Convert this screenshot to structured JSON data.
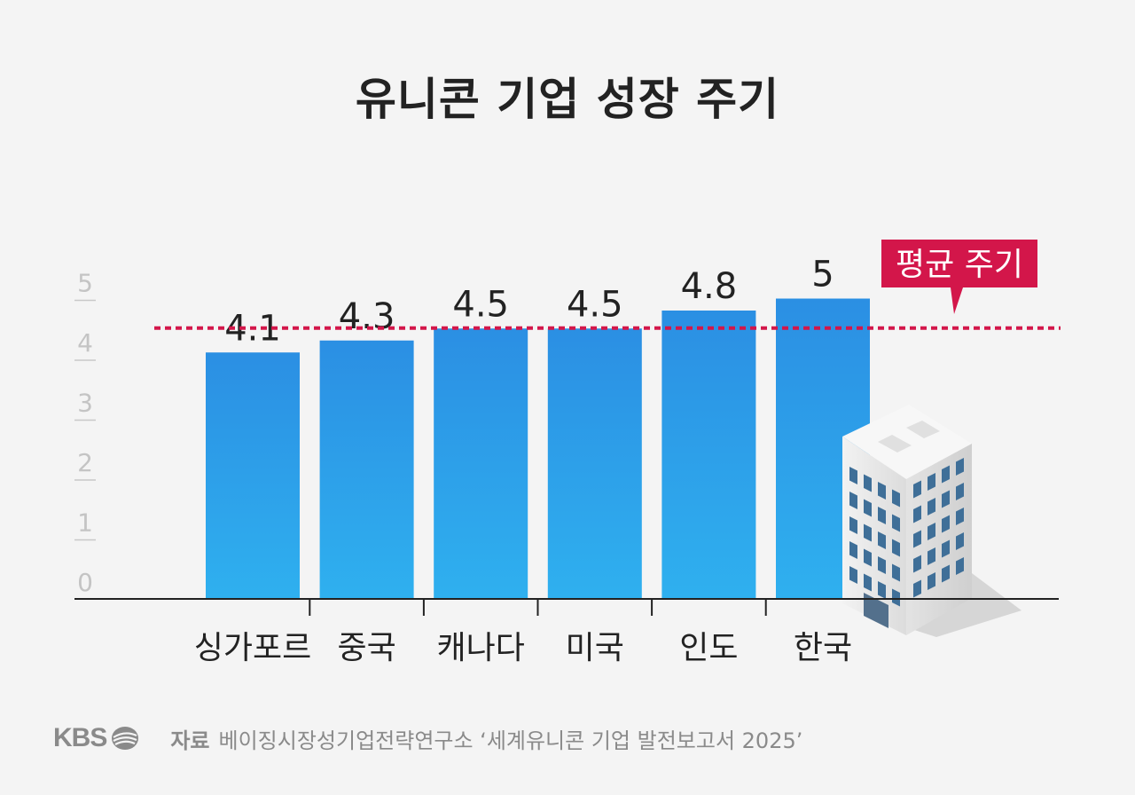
{
  "title": "유니콘 기업 성장 주기",
  "legend_label": "평균 주기",
  "source": {
    "logo": "KBS",
    "label": "자료",
    "text": "베이징시장성기업전략연구소 ‘세계유니콘 기업 발전보고서 2025’"
  },
  "colors": {
    "bar_top": "#2b8fe3",
    "bar_bottom": "#2fb0ef",
    "average_line": "#d3164a",
    "axis": "#222222",
    "tick": "#c8c8c8"
  },
  "chart_data": {
    "type": "bar",
    "categories": [
      "싱가포르",
      "중국",
      "캐나다",
      "미국",
      "인도",
      "한국"
    ],
    "values": [
      4.1,
      4.3,
      4.5,
      4.5,
      4.8,
      5
    ],
    "value_labels": [
      "4.1",
      "4.3",
      "4.5",
      "4.5",
      "4.8",
      "5"
    ],
    "average": 4.5,
    "average_label": "평균 주기",
    "yticks": [
      "0",
      "1",
      "2",
      "3",
      "4",
      "5"
    ],
    "ylim": [
      0,
      5.5
    ],
    "xlabel": "",
    "ylabel": "",
    "grid": false
  }
}
